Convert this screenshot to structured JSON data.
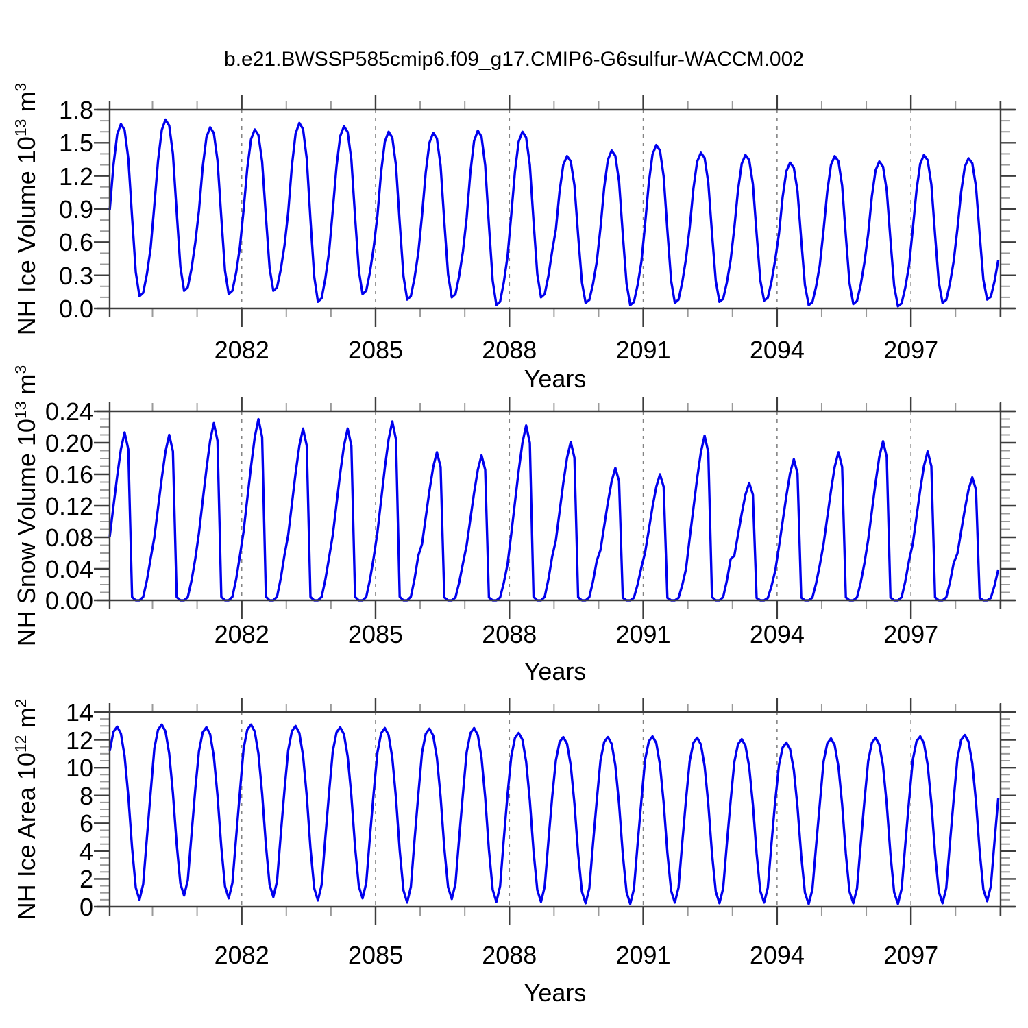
{
  "title": "b.e21.BWSSP585cmip6.f09_g17.CMIP6-G6sulfur-WACCM.002",
  "line_color": "#0000EE",
  "grid_color": "#848484",
  "frame_color": "#3d3d3d",
  "minor_tick_color": "#9a9a9a",
  "chart_data": [
    {
      "type": "line",
      "panel": "nh-ice-volume",
      "ylabel_plain": "NH Ice Volume 10^13 m^3",
      "ylabel_parts": [
        {
          "t": "NH Ice Volume 10",
          "sup": false
        },
        {
          "t": "13",
          "sup": true
        },
        {
          "t": " m",
          "sup": false
        },
        {
          "t": "3",
          "sup": true
        }
      ],
      "xlabel": "Years",
      "ylim": [
        0.0,
        1.8
      ],
      "ytick_labels": [
        "0.0",
        "0.3",
        "0.6",
        "0.9",
        "1.2",
        "1.5",
        "1.8"
      ],
      "yticks": [
        0.0,
        0.3,
        0.6,
        0.9,
        1.2,
        1.5,
        1.8
      ],
      "y_minor_step": 0.1,
      "xlim": [
        2079.04,
        2099.01
      ],
      "xticks_major": [
        2082,
        2085,
        2088,
        2091,
        2094,
        2097
      ],
      "xtick_labels": [
        "2082",
        "2085",
        "2088",
        "2091",
        "2094",
        "2097"
      ],
      "x_minor_step": 1,
      "grid": "vertical-dashed-at-major-xticks",
      "x_start_year": 2079,
      "years": [
        2079,
        2080,
        2081,
        2082,
        2083,
        2084,
        2085,
        2086,
        2087,
        2088,
        2089,
        2090,
        2091,
        2092,
        2093,
        2094,
        2095,
        2096,
        2097,
        2098
      ],
      "annual_max": [
        1.67,
        1.71,
        1.64,
        1.62,
        1.68,
        1.65,
        1.6,
        1.59,
        1.61,
        1.6,
        1.38,
        1.43,
        1.48,
        1.41,
        1.39,
        1.32,
        1.38,
        1.33,
        1.39,
        1.36
      ],
      "annual_min": [
        0.11,
        0.16,
        0.13,
        0.16,
        0.06,
        0.13,
        0.08,
        0.1,
        0.03,
        0.1,
        0.05,
        0.03,
        0.05,
        0.06,
        0.07,
        0.03,
        0.04,
        0.02,
        0.05,
        0.08
      ],
      "monthly_shape": [
        0.5,
        0.76,
        0.94,
        1.0,
        0.965,
        0.8,
        0.46,
        0.14,
        0.0,
        0.02,
        0.13,
        0.28
      ],
      "note": "Monthly series Jan 2079 - Dec 2098; value = annual_min + shape*(annual_max-annual_min), seasonal peak in April, minimum in September"
    },
    {
      "type": "line",
      "panel": "nh-snow-volume",
      "ylabel_plain": "NH Snow Volume 10^13 m^3",
      "ylabel_parts": [
        {
          "t": "NH Snow Volume 10",
          "sup": false
        },
        {
          "t": "13",
          "sup": true
        },
        {
          "t": " m",
          "sup": false
        },
        {
          "t": "3",
          "sup": true
        }
      ],
      "xlabel": "Years",
      "ylim": [
        0.0,
        0.24
      ],
      "ytick_labels": [
        "0.00",
        "0.04",
        "0.08",
        "0.12",
        "0.16",
        "0.20",
        "0.24"
      ],
      "yticks": [
        0.0,
        0.04,
        0.08,
        0.12,
        0.16,
        0.2,
        0.24
      ],
      "y_minor_step": 0.01,
      "xlim": [
        2079.04,
        2099.01
      ],
      "xticks_major": [
        2082,
        2085,
        2088,
        2091,
        2094,
        2097
      ],
      "xtick_labels": [
        "2082",
        "2085",
        "2088",
        "2091",
        "2094",
        "2097"
      ],
      "x_minor_step": 1,
      "grid": "vertical-dashed-at-major-xticks",
      "x_start_year": 2079,
      "years": [
        2079,
        2080,
        2081,
        2082,
        2083,
        2084,
        2085,
        2086,
        2087,
        2088,
        2089,
        2090,
        2091,
        2092,
        2093,
        2094,
        2095,
        2096,
        2097,
        2098
      ],
      "annual_max": [
        0.213,
        0.21,
        0.225,
        0.23,
        0.218,
        0.218,
        0.227,
        0.188,
        0.184,
        0.222,
        0.201,
        0.168,
        0.16,
        0.209,
        0.149,
        0.179,
        0.188,
        0.202,
        0.189,
        0.156
      ],
      "annual_min": [
        0,
        0,
        0,
        0,
        0,
        0,
        0,
        0,
        0,
        0,
        0,
        0,
        0,
        0,
        0,
        0,
        0,
        0,
        0,
        0
      ],
      "monthly_shape": [
        0.38,
        0.56,
        0.74,
        0.9,
        1.0,
        0.9,
        0.02,
        0.0,
        0.0,
        0.02,
        0.12,
        0.25
      ],
      "note": "Monthly series Jan 2079 - Dec 2098; snow volume flat at zero during Jul-Sep, sharp peak in May"
    },
    {
      "type": "line",
      "panel": "nh-ice-area",
      "ylabel_plain": "NH Ice Area 10^12 m^2",
      "ylabel_parts": [
        {
          "t": "NH Ice Area 10",
          "sup": false
        },
        {
          "t": "12",
          "sup": true
        },
        {
          "t": " m",
          "sup": false
        },
        {
          "t": "2",
          "sup": true
        }
      ],
      "xlabel": "Years",
      "ylim": [
        0,
        14
      ],
      "ytick_labels": [
        "0",
        "2",
        "4",
        "6",
        "8",
        "10",
        "12",
        "14"
      ],
      "yticks": [
        0,
        2,
        4,
        6,
        8,
        10,
        12,
        14
      ],
      "y_minor_step": 0.5,
      "xlim": [
        2079.04,
        2099.01
      ],
      "xticks_major": [
        2082,
        2085,
        2088,
        2091,
        2094,
        2097
      ],
      "xtick_labels": [
        "2082",
        "2085",
        "2088",
        "2091",
        "2094",
        "2097"
      ],
      "x_minor_step": 1,
      "grid": "vertical-dashed-at-major-xticks",
      "x_start_year": 2079,
      "years": [
        2079,
        2080,
        2081,
        2082,
        2083,
        2084,
        2085,
        2086,
        2087,
        2088,
        2089,
        2090,
        2091,
        2092,
        2093,
        2094,
        2095,
        2096,
        2097,
        2098
      ],
      "annual_max": [
        12.95,
        13.1,
        12.9,
        13.1,
        13.0,
        12.9,
        12.85,
        12.8,
        12.85,
        12.5,
        12.2,
        12.2,
        12.25,
        12.15,
        12.05,
        11.8,
        12.1,
        12.15,
        12.25,
        12.35
      ],
      "annual_min": [
        0.5,
        0.8,
        0.6,
        0.7,
        0.45,
        0.6,
        0.3,
        0.55,
        0.35,
        0.35,
        0.25,
        0.2,
        0.3,
        0.25,
        0.3,
        0.2,
        0.25,
        0.2,
        0.25,
        0.4
      ],
      "monthly_shape": [
        0.86,
        0.97,
        1.0,
        0.96,
        0.83,
        0.6,
        0.3,
        0.07,
        0.0,
        0.09,
        0.36,
        0.62
      ],
      "note": "Monthly series Jan 2079 - Dec 2098; area peak in March, minimum in September"
    }
  ]
}
